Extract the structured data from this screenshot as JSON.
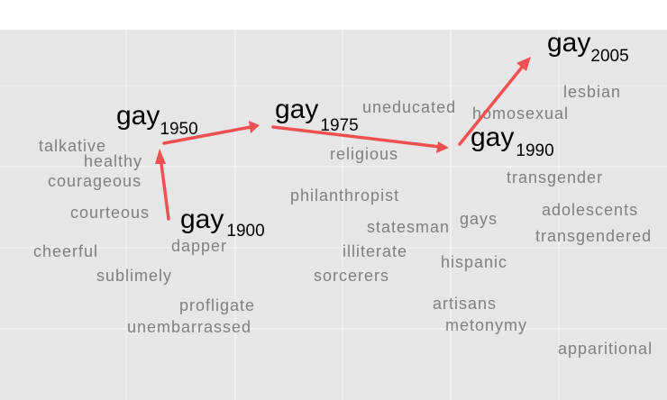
{
  "colors": {
    "panel": "#e6e6e6",
    "gridline": "#f4f4f4",
    "word": "#7f7f7f",
    "label": "#000000",
    "arrow": "#f05050"
  },
  "time_labels": [
    {
      "id": "1900",
      "base": "gay",
      "sub": "1900"
    },
    {
      "id": "1950",
      "base": "gay",
      "sub": "1950"
    },
    {
      "id": "1975",
      "base": "gay",
      "sub": "1975"
    },
    {
      "id": "1990",
      "base": "gay",
      "sub": "1990"
    },
    {
      "id": "2005",
      "base": "gay",
      "sub": "2005"
    }
  ],
  "arrows": [
    {
      "from": "1900",
      "to": "1950"
    },
    {
      "from": "1950",
      "to": "1975"
    },
    {
      "from": "1975",
      "to": "1990"
    },
    {
      "from": "1990",
      "to": "2005"
    }
  ],
  "neighbor_words": [
    "talkative",
    "healthy",
    "courageous",
    "courteous",
    "cheerful",
    "sublimely",
    "dapper",
    "profligate",
    "unembarrassed",
    "uneducated",
    "religious",
    "philanthropist",
    "statesman",
    "illiterate",
    "sorcerers",
    "homosexual",
    "lesbian",
    "transgender",
    "gays",
    "adolescents",
    "transgendered",
    "hispanic",
    "artisans",
    "metonymy",
    "apparitional"
  ]
}
